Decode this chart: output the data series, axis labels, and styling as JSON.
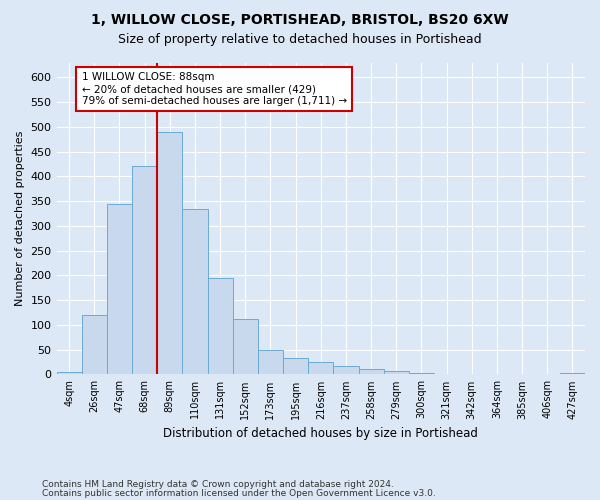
{
  "title1": "1, WILLOW CLOSE, PORTISHEAD, BRISTOL, BS20 6XW",
  "title2": "Size of property relative to detached houses in Portishead",
  "xlabel": "Distribution of detached houses by size in Portishead",
  "ylabel": "Number of detached properties",
  "footnote1": "Contains HM Land Registry data © Crown copyright and database right 2024.",
  "footnote2": "Contains public sector information licensed under the Open Government Licence v3.0.",
  "annotation_title": "1 WILLOW CLOSE: 88sqm",
  "annotation_line1": "← 20% of detached houses are smaller (429)",
  "annotation_line2": "79% of semi-detached houses are larger (1,711) →",
  "bar_labels": [
    "4sqm",
    "26sqm",
    "47sqm",
    "68sqm",
    "89sqm",
    "110sqm",
    "131sqm",
    "152sqm",
    "173sqm",
    "195sqm",
    "216sqm",
    "237sqm",
    "258sqm",
    "279sqm",
    "300sqm",
    "321sqm",
    "342sqm",
    "364sqm",
    "385sqm",
    "406sqm",
    "427sqm"
  ],
  "bar_values": [
    5,
    120,
    345,
    420,
    490,
    335,
    195,
    112,
    50,
    34,
    25,
    17,
    10,
    7,
    2,
    1,
    1,
    1,
    1,
    1,
    2
  ],
  "bar_color": "#c8d8ed",
  "bar_edge_color": "#6aaad4",
  "redline_bin_index": 4,
  "ylim_max": 630,
  "yticks": [
    0,
    50,
    100,
    150,
    200,
    250,
    300,
    350,
    400,
    450,
    500,
    550,
    600
  ],
  "bg_color": "#dce8f5",
  "red_line_color": "#cc0000",
  "grid_color": "#ffffff"
}
